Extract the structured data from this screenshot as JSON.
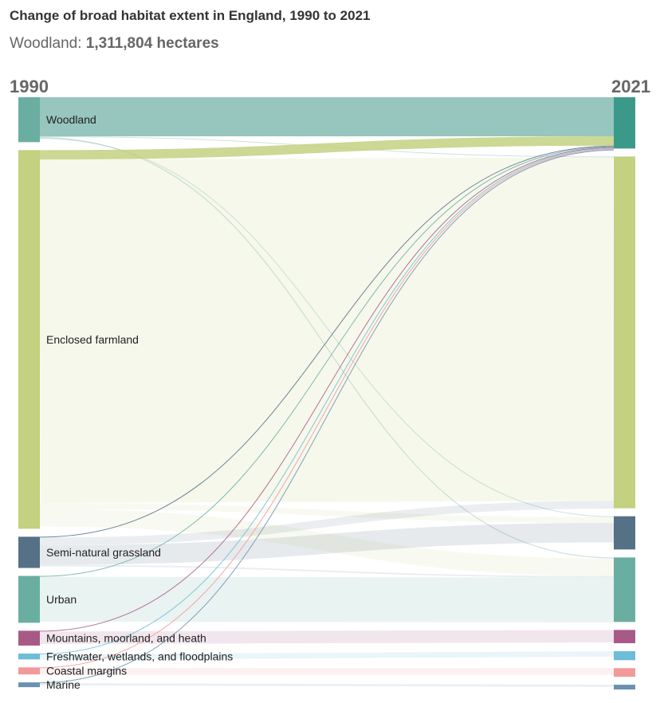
{
  "header": {
    "title": "Change of broad habitat extent in England, 1990 to 2021",
    "subtitle_label": "Woodland:",
    "subtitle_value": "1,311,804 hectares"
  },
  "chart_data": {
    "type": "sankey",
    "title": "Change of broad habitat extent in England, 1990 to 2021",
    "left_year": "1990",
    "right_year": "2021",
    "nodes": [
      {
        "name": "Woodland",
        "color": "#6aaea1",
        "start": 1150000,
        "end": 1311804
      },
      {
        "name": "Enclosed farmland",
        "color": "#c3d180",
        "start": 9700000,
        "end": 9000000
      },
      {
        "name": "Semi-natural grassland",
        "color": "#557186",
        "start": 800000,
        "end": 850000
      },
      {
        "name": "Urban",
        "color": "#6aaea1",
        "start": 1200000,
        "end": 1650000
      },
      {
        "name": "Mountains, moorland, and heath",
        "color": "#a85a87",
        "start": 380000,
        "end": 340000
      },
      {
        "name": "Freshwater, wetlands, and floodplains",
        "color": "#6dbcd8",
        "start": 150000,
        "end": 230000
      },
      {
        "name": "Coastal margins",
        "color": "#f2999a",
        "start": 180000,
        "end": 220000
      },
      {
        "name": "Marine",
        "color": "#6a91b0",
        "start": 120000,
        "end": 60000
      }
    ],
    "flows": [
      {
        "from": "Woodland",
        "to": "Woodland",
        "value": 1000000
      },
      {
        "from": "Woodland",
        "to": "Enclosed farmland",
        "value": 20000
      },
      {
        "from": "Woodland",
        "to": "Urban",
        "value": 25000
      },
      {
        "from": "Woodland",
        "to": "Semi-natural grassland",
        "value": 12000
      },
      {
        "from": "Enclosed farmland",
        "to": "Woodland",
        "value": 240000
      },
      {
        "from": "Enclosed farmland",
        "to": "Enclosed farmland",
        "value": 8800000
      },
      {
        "from": "Enclosed farmland",
        "to": "Semi-natural grassland",
        "value": 150000
      },
      {
        "from": "Enclosed farmland",
        "to": "Urban",
        "value": 450000
      },
      {
        "from": "Semi-natural grassland",
        "to": "Woodland",
        "value": 20000
      },
      {
        "from": "Semi-natural grassland",
        "to": "Enclosed farmland",
        "value": 200000
      },
      {
        "from": "Semi-natural grassland",
        "to": "Semi-natural grassland",
        "value": 500000
      },
      {
        "from": "Semi-natural grassland",
        "to": "Urban",
        "value": 40000
      },
      {
        "from": "Urban",
        "to": "Woodland",
        "value": 8000
      },
      {
        "from": "Urban",
        "to": "Urban",
        "value": 1150000
      },
      {
        "from": "Mountains, moorland, and heath",
        "to": "Woodland",
        "value": 12000
      },
      {
        "from": "Mountains, moorland, and heath",
        "to": "Mountains, moorland, and heath",
        "value": 320000
      },
      {
        "from": "Freshwater, wetlands, and floodplains",
        "to": "Woodland",
        "value": 6000
      },
      {
        "from": "Freshwater, wetlands, and floodplains",
        "to": "Freshwater, wetlands, and floodplains",
        "value": 140000
      },
      {
        "from": "Coastal margins",
        "to": "Woodland",
        "value": 5000
      },
      {
        "from": "Coastal margins",
        "to": "Coastal margins",
        "value": 170000
      },
      {
        "from": "Marine",
        "to": "Woodland",
        "value": 5000
      },
      {
        "from": "Marine",
        "to": "Marine",
        "value": 55000
      }
    ],
    "highlighted_node": "Woodland"
  }
}
